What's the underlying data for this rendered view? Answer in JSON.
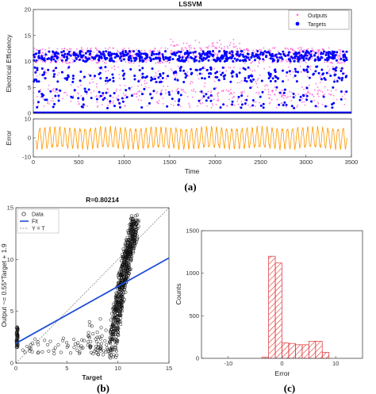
{
  "figure_labels": [
    "(a)",
    "(b)",
    "(c)"
  ],
  "chart_data": [
    {
      "id": "a-top",
      "type": "scatter",
      "title": "LSSVM",
      "xlabel": "",
      "ylabel": "Electrical Efficiency",
      "xlim": [
        0,
        3500
      ],
      "ylim": [
        0,
        20
      ],
      "xticks": [
        "0",
        "500",
        "1000",
        "1500",
        "2000",
        "2500",
        "3000",
        "3500"
      ],
      "yticks": [
        "0",
        "5",
        "10",
        "15",
        "20"
      ],
      "legend": {
        "placement": "top-right"
      },
      "series": [
        {
          "name": "Outputs",
          "marker": "star",
          "color": "#ff33cc",
          "description_values": {
            "main_band": [
              9.5,
              12.5
            ],
            "peak": 14.5,
            "lower_band": [
              1,
              5
            ]
          }
        },
        {
          "name": "Targets",
          "marker": "circle",
          "color": "#0000ff",
          "description_values": {
            "main_band": [
              10,
              12
            ],
            "mid_values": [
              3,
              9
            ],
            "baseline": 0
          }
        }
      ]
    },
    {
      "id": "a-bottom",
      "type": "line",
      "xlabel": "Time",
      "ylabel": "Error",
      "xlim": [
        0,
        3500
      ],
      "ylim": [
        -10,
        10
      ],
      "xticks": [
        "0",
        "500",
        "1000",
        "1500",
        "2000",
        "2500",
        "3000",
        "3500"
      ],
      "yticks": [
        "-10",
        "0",
        "10"
      ],
      "series": [
        {
          "color": "#ff9900",
          "cycles": 62,
          "amplitude": 6,
          "offset": 0
        }
      ]
    },
    {
      "id": "b",
      "type": "scatter",
      "title": "R=0.80214",
      "xlabel": "Target",
      "ylabel": "Output ~= 0.55*Target + 1.9",
      "xlim": [
        0,
        15
      ],
      "ylim": [
        0,
        15
      ],
      "xticks": [
        "0",
        "5",
        "10",
        "15"
      ],
      "yticks": [
        "0",
        "5",
        "10",
        "15"
      ],
      "legend": {
        "placement": "top-left",
        "entries": [
          "Data",
          "Fit",
          "Y = T"
        ]
      },
      "fit": {
        "slope": 0.55,
        "intercept": 1.9,
        "color": "#1f4fd8"
      },
      "identity_line": {
        "color": "#777777"
      }
    },
    {
      "id": "c",
      "type": "bar",
      "xlabel": "Error",
      "ylabel": "Counts",
      "xlim": [
        -15,
        15
      ],
      "ylim": [
        0,
        1500
      ],
      "xticks": [
        "-10",
        "0",
        "10"
      ],
      "yticks": [
        "0",
        "500",
        "1000",
        "1500"
      ],
      "bin_width": 1.25,
      "bins": [
        {
          "x0": -3.75,
          "count": 12
        },
        {
          "x0": -2.5,
          "count": 1200
        },
        {
          "x0": -1.25,
          "count": 1120
        },
        {
          "x0": 0,
          "count": 180
        },
        {
          "x0": 1.25,
          "count": 175
        },
        {
          "x0": 2.5,
          "count": 160
        },
        {
          "x0": 3.75,
          "count": 160
        },
        {
          "x0": 5.0,
          "count": 200
        },
        {
          "x0": 6.25,
          "count": 200
        },
        {
          "x0": 7.5,
          "count": 70
        }
      ],
      "color": "#e03030"
    }
  ]
}
